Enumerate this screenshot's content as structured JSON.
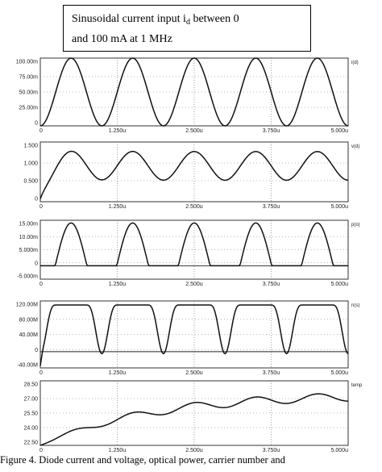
{
  "callout": {
    "line1_before": "Sinusoidal current input i",
    "subscript": "d",
    "line1_after": " between 0",
    "line2": "and 100 mA at 1 MHz"
  },
  "caption": "Figure 4. Diode current and voltage, optical power, carrier number and",
  "chart_data": [
    {
      "type": "line",
      "corner_label": "i(d)",
      "yticks": [
        "100.00m",
        "75.00m",
        "50.00m",
        "25.00m",
        "0"
      ],
      "xticks": [
        "0",
        "1.250u",
        "2.500u",
        "3.750u",
        "5.000u"
      ],
      "xlim": [
        0,
        5
      ],
      "ylim": [
        0,
        100
      ],
      "series": [
        {
          "color": "#111111",
          "points": []
        }
      ]
    },
    {
      "type": "line",
      "corner_label": "v(d)",
      "yticks": [
        "1.500",
        "1.000",
        "0.500",
        "0"
      ],
      "xticks": [
        "0",
        "1.250u",
        "2.500u",
        "3.750u",
        "5.000u"
      ],
      "xlim": [
        0,
        5
      ],
      "ylim": [
        0,
        1.75
      ],
      "series": [
        {
          "color": "#111111",
          "points": []
        }
      ]
    },
    {
      "type": "line",
      "corner_label": "p(o)",
      "yticks": [
        "15.00m",
        "10.00m",
        "5.000m",
        "0",
        "-5.000m"
      ],
      "xticks": [
        "0",
        "1.250u",
        "2.500u",
        "3.750u",
        "5.000u"
      ],
      "xlim": [
        0,
        5
      ],
      "ylim": [
        -5,
        17
      ],
      "series": [
        {
          "color": "#111111",
          "points": []
        }
      ]
    },
    {
      "type": "line",
      "corner_label": "n(s)",
      "yticks": [
        "120.00M",
        "80.00M",
        "40.00M",
        "0",
        "-40.00M"
      ],
      "xticks": [
        "0",
        "1.250u",
        "2.500u",
        "3.750u",
        "5.000u"
      ],
      "xlim": [
        0,
        5
      ],
      "ylim": [
        -40,
        125
      ],
      "series": [
        {
          "color": "#111111",
          "points": []
        }
      ]
    },
    {
      "type": "line",
      "corner_label": "temp",
      "yticks": [
        "28.50",
        "27.00",
        "25.50",
        "24.00",
        "22.50"
      ],
      "xticks": [
        "0",
        "1.250u",
        "2.500u",
        "3.750u",
        "5.000u"
      ],
      "xlim": [
        0,
        5
      ],
      "ylim": [
        22.5,
        29.5
      ],
      "series": [
        {
          "color": "#111111",
          "points": []
        }
      ]
    }
  ]
}
